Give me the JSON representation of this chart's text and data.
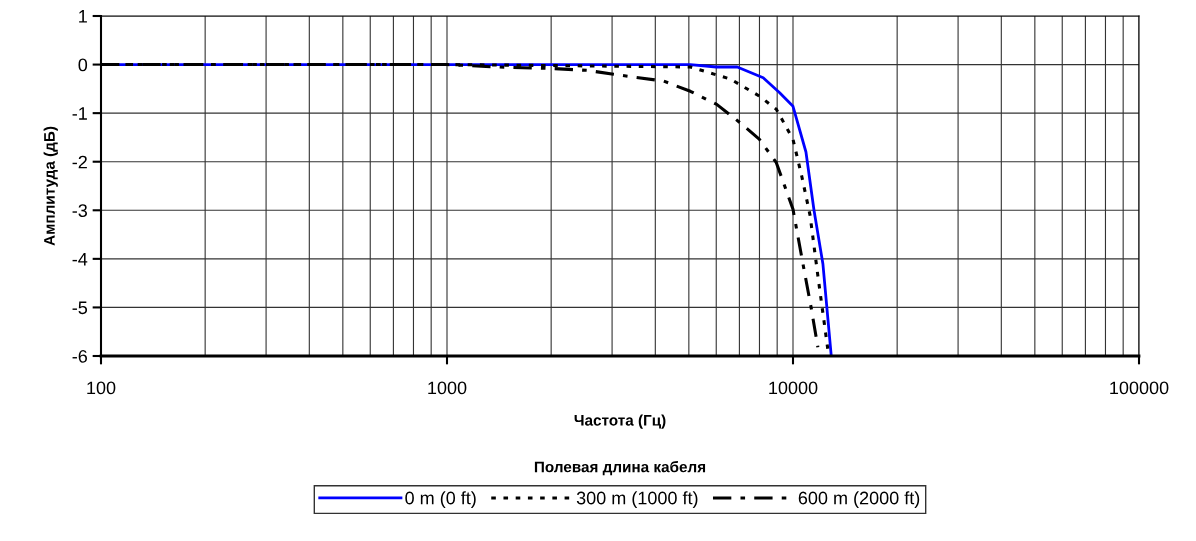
{
  "chart_data": {
    "type": "line",
    "xlabel": "Частота (Гц)",
    "ylabel": "Амплитуда (дБ)",
    "legend_title": "Полевая длина кабеля",
    "log": "x",
    "xlim": [
      100,
      100000
    ],
    "xticks": [
      100,
      1000,
      10000,
      100000
    ],
    "ylim": [
      -6,
      1
    ],
    "yticks": [
      -6,
      -5,
      -4,
      -3,
      -2,
      -1,
      0,
      1
    ],
    "grid": true,
    "legend": "bottom",
    "marker": "none",
    "series": [
      {
        "name": "0 m (0 ft)",
        "color": "#0000ff",
        "line_style": "solid",
        "x": [
          100,
          1000,
          5050,
          6000,
          6900,
          8200,
          9150,
          10000,
          10900,
          11500,
          12200,
          12900
        ],
        "values": [
          0,
          0,
          0,
          -0.05,
          -0.05,
          -0.27,
          -0.58,
          -0.86,
          -1.8,
          -3.0,
          -4.1,
          -6.0
        ]
      },
      {
        "name": "300 m (1000 ft)",
        "color": "#000000",
        "line_style": "dotted",
        "x": [
          100,
          1000,
          2000,
          5050,
          6600,
          8000,
          8950,
          10000,
          10600,
          11200,
          11800,
          12600
        ],
        "values": [
          0,
          0,
          -0.02,
          -0.05,
          -0.3,
          -0.65,
          -0.92,
          -1.54,
          -2.3,
          -3.1,
          -4.35,
          -5.85
        ]
      },
      {
        "name": "600 m (2000 ft)",
        "color": "#000000",
        "line_style": "dashdot",
        "x": [
          100,
          1000,
          1400,
          2000,
          2550,
          3030,
          4230,
          5050,
          6020,
          7040,
          8000,
          8950,
          10000,
          10670,
          11300,
          11800
        ],
        "values": [
          0,
          0,
          -0.05,
          -0.08,
          -0.12,
          -0.2,
          -0.34,
          -0.55,
          -0.82,
          -1.2,
          -1.54,
          -2.02,
          -2.98,
          -4.08,
          -5.03,
          -5.82
        ]
      }
    ]
  }
}
